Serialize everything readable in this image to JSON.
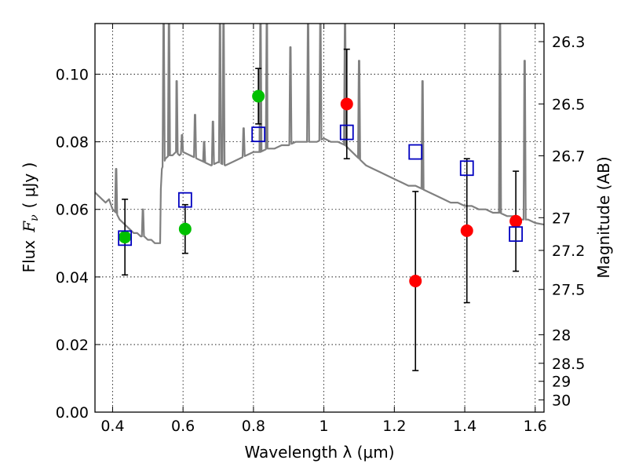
{
  "chart_data": {
    "type": "scatter",
    "title": "",
    "xlabel": "Wavelength  λ (μm)",
    "ylabel_text": "Flux",
    "ylabel_symbol": "F",
    "ylabel_subscript": "ν",
    "ylabel_units": "( μJy )",
    "ylabel_right": "Magnitude (AB)",
    "xlim": [
      0.35,
      1.625
    ],
    "ylim": [
      0,
      0.115
    ],
    "x_ticks": [
      0.4,
      0.6,
      0.8,
      1.0,
      1.2,
      1.4,
      1.6
    ],
    "x_tick_labels": [
      "0.4",
      "0.6",
      "0.8",
      "1",
      "1.2",
      "1.4",
      "1.6"
    ],
    "y_ticks": [
      0.0,
      0.02,
      0.04,
      0.06,
      0.08,
      0.1
    ],
    "y_tick_labels": [
      "0.00",
      "0.02",
      "0.04",
      "0.06",
      "0.08",
      "0.10"
    ],
    "right_ticks": [
      {
        "mag": 26.3,
        "label": "26.3"
      },
      {
        "mag": 26.5,
        "label": "26.5"
      },
      {
        "mag": 26.7,
        "label": "26.7"
      },
      {
        "mag": 27.0,
        "label": "27"
      },
      {
        "mag": 27.2,
        "label": "27.2"
      },
      {
        "mag": 27.5,
        "label": "27.5"
      },
      {
        "mag": 28.0,
        "label": "28"
      },
      {
        "mag": 28.5,
        "label": "28.5"
      },
      {
        "mag": 29.0,
        "label": "29"
      },
      {
        "mag": 30.0,
        "label": "30"
      }
    ],
    "grid": true,
    "colors": {
      "green": "#00c000",
      "red": "#ff0000",
      "blue": "#0000c0",
      "spectrum": "#808080",
      "errorbar": "#000000"
    },
    "series": [
      {
        "marker": "circle",
        "color": "green",
        "points": [
          {
            "x": 0.435,
            "y": 0.0518,
            "err": 0.0112
          },
          {
            "x": 0.606,
            "y": 0.0542,
            "err": 0.0072
          },
          {
            "x": 0.814,
            "y": 0.0935,
            "err": 0.0082
          }
        ]
      },
      {
        "marker": "circle",
        "color": "red",
        "points": [
          {
            "x": 1.065,
            "y": 0.0912,
            "err": 0.0162
          },
          {
            "x": 1.26,
            "y": 0.0388,
            "err": 0.0265
          },
          {
            "x": 1.406,
            "y": 0.0537,
            "err": 0.0213
          },
          {
            "x": 1.545,
            "y": 0.0565,
            "err": 0.0148
          }
        ]
      },
      {
        "marker": "square",
        "color": "blue",
        "points": [
          {
            "x": 0.435,
            "y": 0.0515
          },
          {
            "x": 0.606,
            "y": 0.0628
          },
          {
            "x": 0.814,
            "y": 0.0822
          },
          {
            "x": 1.065,
            "y": 0.0828
          },
          {
            "x": 1.26,
            "y": 0.077
          },
          {
            "x": 1.406,
            "y": 0.0722
          },
          {
            "x": 1.545,
            "y": 0.0527
          }
        ]
      }
    ],
    "spectrum": {
      "x": [
        0.35,
        0.36,
        0.37,
        0.38,
        0.39,
        0.4,
        0.41,
        0.42,
        0.43,
        0.44,
        0.45,
        0.46,
        0.47,
        0.48,
        0.49,
        0.5,
        0.51,
        0.52,
        0.53,
        0.535,
        0.537,
        0.54,
        0.55,
        0.56,
        0.57,
        0.58,
        0.59,
        0.6,
        0.62,
        0.64,
        0.66,
        0.68,
        0.7,
        0.72,
        0.74,
        0.76,
        0.78,
        0.8,
        0.82,
        0.84,
        0.86,
        0.88,
        0.9,
        0.92,
        0.94,
        0.96,
        0.98,
        1.0,
        1.02,
        1.04,
        1.06,
        1.08,
        1.1,
        1.12,
        1.14,
        1.16,
        1.18,
        1.2,
        1.22,
        1.24,
        1.26,
        1.28,
        1.3,
        1.32,
        1.34,
        1.36,
        1.38,
        1.4,
        1.42,
        1.44,
        1.46,
        1.48,
        1.5,
        1.52,
        1.54,
        1.56,
        1.58,
        1.6,
        1.625
      ],
      "y": [
        0.065,
        0.064,
        0.063,
        0.062,
        0.063,
        0.06,
        0.059,
        0.057,
        0.056,
        0.055,
        0.054,
        0.053,
        0.053,
        0.052,
        0.052,
        0.051,
        0.051,
        0.05,
        0.05,
        0.05,
        0.066,
        0.072,
        0.075,
        0.076,
        0.076,
        0.077,
        0.076,
        0.077,
        0.076,
        0.075,
        0.074,
        0.073,
        0.074,
        0.073,
        0.074,
        0.075,
        0.076,
        0.077,
        0.077,
        0.078,
        0.078,
        0.079,
        0.079,
        0.08,
        0.08,
        0.08,
        0.08,
        0.081,
        0.08,
        0.08,
        0.079,
        0.077,
        0.075,
        0.073,
        0.072,
        0.071,
        0.07,
        0.069,
        0.068,
        0.067,
        0.067,
        0.066,
        0.065,
        0.064,
        0.063,
        0.062,
        0.062,
        0.061,
        0.061,
        0.06,
        0.06,
        0.059,
        0.059,
        0.058,
        0.058,
        0.057,
        0.057,
        0.056,
        0.0555
      ]
    },
    "spectrum_lines": [
      {
        "x": 0.41,
        "peak": 0.072
      },
      {
        "x": 0.486,
        "peak": 0.06
      },
      {
        "x": 0.545,
        "peak": 0.115
      },
      {
        "x": 0.56,
        "peak": 0.115
      },
      {
        "x": 0.582,
        "peak": 0.098
      },
      {
        "x": 0.597,
        "peak": 0.082
      },
      {
        "x": 0.634,
        "peak": 0.088
      },
      {
        "x": 0.66,
        "peak": 0.08
      },
      {
        "x": 0.685,
        "peak": 0.086
      },
      {
        "x": 0.705,
        "peak": 0.115
      },
      {
        "x": 0.715,
        "peak": 0.115
      },
      {
        "x": 0.772,
        "peak": 0.084
      },
      {
        "x": 0.82,
        "peak": 0.115
      },
      {
        "x": 0.838,
        "peak": 0.115
      },
      {
        "x": 0.905,
        "peak": 0.108
      },
      {
        "x": 0.955,
        "peak": 0.115
      },
      {
        "x": 0.99,
        "peak": 0.115
      },
      {
        "x": 1.06,
        "peak": 0.115
      },
      {
        "x": 1.1,
        "peak": 0.104
      },
      {
        "x": 1.28,
        "peak": 0.098
      },
      {
        "x": 1.5,
        "peak": 0.115
      },
      {
        "x": 1.57,
        "peak": 0.104
      }
    ]
  }
}
